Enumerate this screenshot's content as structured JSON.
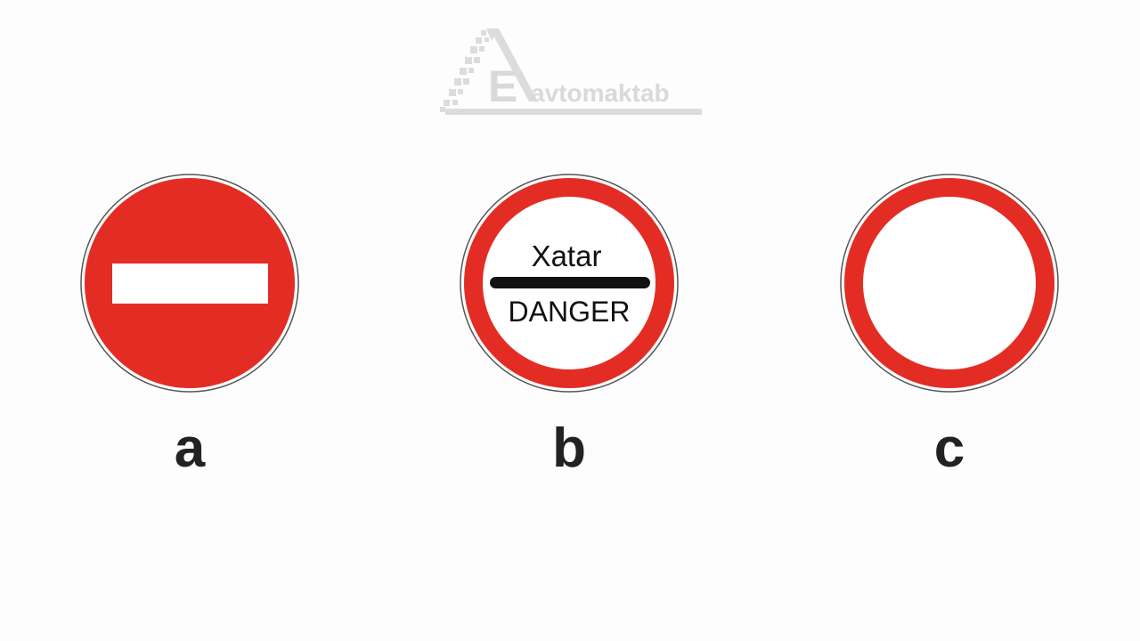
{
  "watermark": {
    "logo_letter": "E",
    "brand_text": "avtomaktab",
    "color": "#d9d9d9"
  },
  "signs": [
    {
      "option": "a",
      "kind": "no-entry",
      "colors": {
        "fill": "#e32d24",
        "bar": "#ffffff",
        "rim": "#555555"
      }
    },
    {
      "option": "b",
      "kind": "danger-restriction",
      "text_top": "Xatar",
      "text_bottom": "DANGER",
      "colors": {
        "ring": "#e32d24",
        "fill": "#ffffff",
        "bar": "#111111",
        "text": "#111111",
        "rim": "#555555"
      }
    },
    {
      "option": "c",
      "kind": "no-vehicles",
      "colors": {
        "ring": "#e32d24",
        "fill": "#ffffff",
        "rim": "#555555"
      }
    }
  ],
  "labels": {
    "a": "a",
    "b": "b",
    "c": "c"
  }
}
